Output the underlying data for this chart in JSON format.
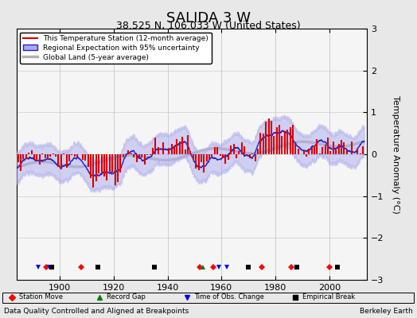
{
  "title": "SALIDA 3 W",
  "subtitle": "38.525 N, 106.033 W (United States)",
  "ylabel": "Temperature Anomaly (°C)",
  "xlabel_bottom": "Data Quality Controlled and Aligned at Breakpoints",
  "xlabel_right": "Berkeley Earth",
  "ylim": [
    -3,
    3
  ],
  "xlim": [
    1884,
    2014
  ],
  "yticks": [
    -3,
    -2,
    -1,
    0,
    1,
    2,
    3
  ],
  "xticks": [
    1900,
    1920,
    1940,
    1960,
    1980,
    2000
  ],
  "bg_color": "#e8e8e8",
  "plot_bg_color": "#f5f5f5",
  "red_color": "#dd0000",
  "blue_fill_color": "#aaaaee",
  "blue_line_color": "#2222cc",
  "gray_color": "#b0b0b0",
  "grid_color": "#cccccc",
  "legend_labels": [
    "This Temperature Station (12-month average)",
    "Regional Expectation with 95% uncertainty",
    "Global Land (5-year average)"
  ],
  "station_moves": [
    1895,
    1908,
    1952,
    1957,
    1975,
    1986,
    2000
  ],
  "record_gaps": [
    1953
  ],
  "obs_changes": [
    1892,
    1896,
    1959,
    1962
  ],
  "empirical_breaks": [
    1897,
    1914,
    1935,
    1970,
    1988,
    2003
  ],
  "seed": 42
}
